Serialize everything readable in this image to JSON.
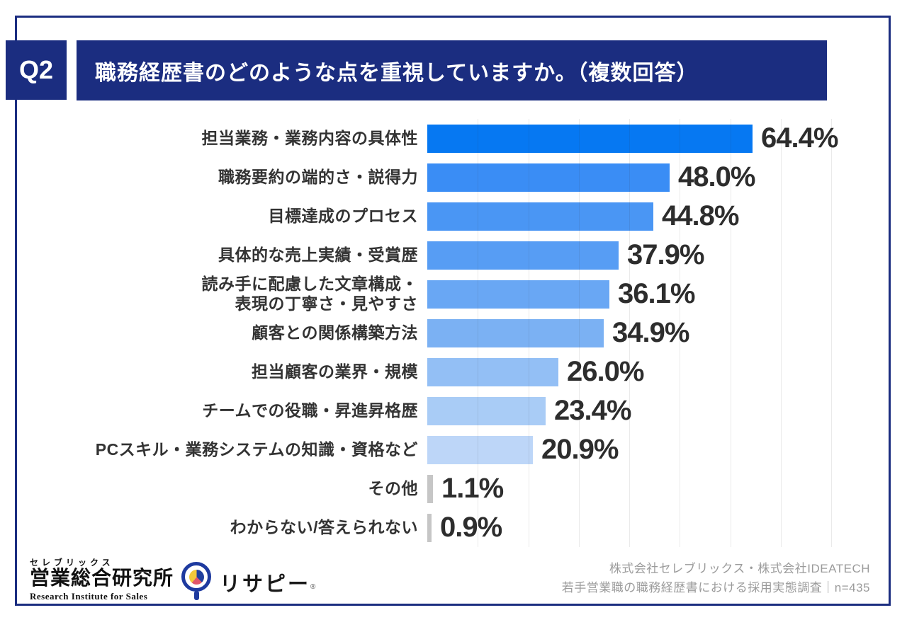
{
  "header": {
    "q_label": "Q2",
    "title": "職務経歴書のどのような点を重視していますか。（複数回答）"
  },
  "colors": {
    "navy": "#1b2d80",
    "value_text": "#2d2d2d",
    "label_text": "#333333",
    "footer_text": "#9b9b9b",
    "gridline": "rgba(50,50,50,0.10)"
  },
  "chart_data": {
    "type": "bar",
    "orientation": "horizontal",
    "unit": "%",
    "xlim": [
      0,
      80
    ],
    "gridline_step": 10,
    "grid": "vertical lines every 10% from 10 to 80, no axis labels",
    "legend": "none",
    "categories": [
      "担当業務・業務内容の具体性",
      "職務要約の端的さ・説得力",
      "目標達成のプロセス",
      "具体的な売上実績・受賞歴",
      "読み手に配慮した文章構成・\n表現の丁寧さ・見やすさ",
      "顧客との関係構築方法",
      "担当顧客の業界・規模",
      "チームでの役職・昇進昇格歴",
      "PCスキル・業務システムの知識・資格など",
      "その他",
      "わからない/答えられない"
    ],
    "values": [
      64.4,
      48.0,
      44.8,
      37.9,
      36.1,
      34.9,
      26.0,
      23.4,
      20.9,
      1.1,
      0.9
    ],
    "value_labels": [
      "64.4%",
      "48.0%",
      "44.8%",
      "37.9%",
      "36.1%",
      "34.9%",
      "26.0%",
      "23.4%",
      "20.9%",
      "1.1%",
      "0.9%"
    ],
    "bar_colors": [
      "#0678f2",
      "#3a8df5",
      "#4a96f4",
      "#579df4",
      "#69a7f4",
      "#7bb1f3",
      "#93bff5",
      "#a9ccf6",
      "#bdd6f8",
      "#c6c6c6",
      "#c6c6c6"
    ]
  },
  "footer": {
    "left_logo": {
      "top": "セレブリックス",
      "main": "営業総合研究所",
      "sub": "Research Institute for Sales"
    },
    "risapy_logo": {
      "text": "リサピー",
      "mark": "®",
      "ring_color": "#1e3a9f",
      "pie_colors": {
        "navy": "#203f9e",
        "red": "#e0566a",
        "yellow": "#f3c83a"
      }
    },
    "credit_line1": "株式会社セレブリックス・株式会社IDEATECH",
    "credit_line2": "若手営業職の職務経歴書における採用実態調査｜n=435"
  }
}
